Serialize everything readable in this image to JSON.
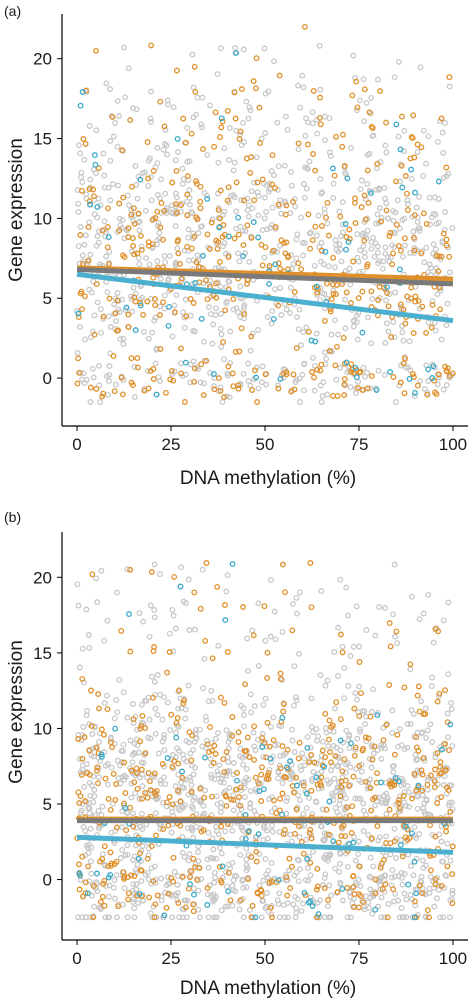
{
  "figure": {
    "panel_labels": [
      "(a)",
      "(b)"
    ]
  },
  "colors": {
    "grey_points": "#c8c8c8",
    "orange_points": "#e0902a",
    "blue_points": "#3aa9c9",
    "grey_line": "#7a7a7a",
    "orange_line": "#e0902a",
    "blue_line": "#4bb0cf",
    "axis": "#000000"
  },
  "chart_data": [
    {
      "type": "scatter",
      "panel": "(a)",
      "xlabel": "DNA methylation (%)",
      "ylabel": "Gene expression",
      "xlim": [
        -4,
        104
      ],
      "ylim": [
        -3.0,
        22.8
      ],
      "x_ticks": [
        0,
        25,
        50,
        75,
        100
      ],
      "y_ticks": [
        0,
        5,
        10,
        15,
        20
      ],
      "grid": false,
      "legend": "none",
      "point_groups": [
        {
          "color_key": "grey_points",
          "x_range": [
            0,
            100
          ],
          "y_center": 8.5,
          "y_spread": 4.2,
          "count": 900
        },
        {
          "color_key": "orange_points",
          "x_range": [
            0,
            100
          ],
          "y_center": 8.5,
          "y_spread": 4.2,
          "count": 480
        },
        {
          "color_key": "blue_points",
          "x_range": [
            0,
            100
          ],
          "y_center": 8.0,
          "y_spread": 3.5,
          "count": 70
        }
      ],
      "fit_lines": [
        {
          "color_key": "orange_line",
          "x": [
            0,
            100
          ],
          "y": [
            6.9,
            6.2
          ]
        },
        {
          "color_key": "grey_line",
          "x": [
            0,
            100
          ],
          "y": [
            6.8,
            5.9
          ]
        },
        {
          "color_key": "blue_line",
          "x": [
            0,
            100
          ],
          "y": [
            6.5,
            3.6
          ]
        }
      ]
    },
    {
      "type": "scatter",
      "panel": "(b)",
      "xlabel": "DNA methylation (%)",
      "ylabel": "Gene expression",
      "xlim": [
        -4,
        104
      ],
      "ylim": [
        -4.0,
        23.0
      ],
      "x_ticks": [
        0,
        25,
        50,
        75,
        100
      ],
      "y_ticks": [
        0,
        5,
        10,
        15,
        20
      ],
      "grid": false,
      "legend": "none",
      "point_groups": [
        {
          "color_key": "grey_points",
          "x_range": [
            0,
            100
          ],
          "y_center": 5.0,
          "y_spread": 4.5,
          "count": 1300
        },
        {
          "color_key": "orange_points",
          "x_range": [
            0,
            100
          ],
          "y_center": 6.0,
          "y_spread": 4.2,
          "count": 520
        },
        {
          "color_key": "blue_points",
          "x_range": [
            0,
            100
          ],
          "y_center": 5.0,
          "y_spread": 3.8,
          "count": 80
        }
      ],
      "fit_lines": [
        {
          "color_key": "orange_line",
          "x": [
            0,
            100
          ],
          "y": [
            4.0,
            4.0
          ]
        },
        {
          "color_key": "grey_line",
          "x": [
            0,
            100
          ],
          "y": [
            3.9,
            3.9
          ]
        },
        {
          "color_key": "blue_line",
          "x": [
            0,
            100
          ],
          "y": [
            2.8,
            1.8
          ]
        }
      ]
    }
  ]
}
